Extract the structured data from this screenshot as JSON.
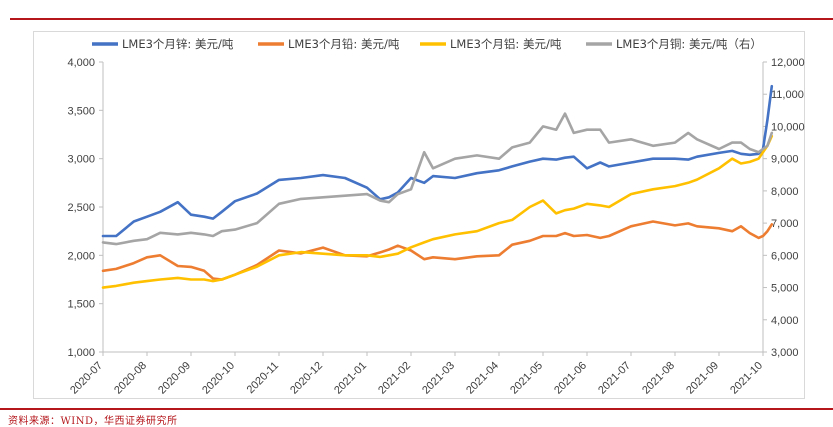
{
  "chart_data": {
    "type": "line",
    "xlabels": [
      "2020-07",
      "2020-08",
      "2020-09",
      "2020-10",
      "2020-11",
      "2020-12",
      "2021-01",
      "2021-02",
      "2021-03",
      "2021-04",
      "2021-05",
      "2021-06",
      "2021-07",
      "2021-08",
      "2021-09",
      "2021-10"
    ],
    "y_left": {
      "min": 1000,
      "max": 4000,
      "ticks": [
        "1,000",
        "1,500",
        "2,000",
        "2,500",
        "3,000",
        "3,500",
        "4,000"
      ]
    },
    "y_right": {
      "min": 3000,
      "max": 12000,
      "ticks": [
        "3,000",
        "4,000",
        "5,000",
        "6,000",
        "7,000",
        "8,000",
        "9,000",
        "10,000",
        "11,000",
        "12,000"
      ]
    },
    "legend_position": "top",
    "grid": false,
    "series": [
      {
        "name": "LME3个月锌: 美元/吨",
        "color": "#4472c4",
        "axis": "left",
        "x": [
          0,
          0.3,
          0.7,
          1,
          1.3,
          1.7,
          2,
          2.3,
          2.5,
          2.7,
          3,
          3.5,
          4,
          4.5,
          5,
          5.5,
          6,
          6.3,
          6.5,
          6.7,
          7,
          7.3,
          7.5,
          8,
          8.5,
          9,
          9.3,
          9.7,
          10,
          10.3,
          10.5,
          10.7,
          11,
          11.3,
          11.5,
          12,
          12.5,
          13,
          13.3,
          13.5,
          14,
          14.3,
          14.5,
          14.7,
          14.9,
          15,
          15.1,
          15.2
        ],
        "y": [
          2200,
          2200,
          2350,
          2400,
          2450,
          2550,
          2420,
          2400,
          2380,
          2450,
          2560,
          2640,
          2780,
          2800,
          2830,
          2800,
          2700,
          2580,
          2600,
          2650,
          2800,
          2750,
          2820,
          2800,
          2850,
          2880,
          2920,
          2970,
          3000,
          2990,
          3010,
          3020,
          2900,
          2960,
          2920,
          2960,
          3000,
          3000,
          2990,
          3020,
          3060,
          3080,
          3050,
          3040,
          3050,
          3100,
          3400,
          3750
        ]
      },
      {
        "name": "LME3个月铅: 美元/吨",
        "color": "#ed7d31",
        "axis": "left",
        "x": [
          0,
          0.3,
          0.7,
          1,
          1.3,
          1.7,
          2,
          2.3,
          2.5,
          2.7,
          3,
          3.5,
          4,
          4.5,
          5,
          5.5,
          6,
          6.3,
          6.5,
          6.7,
          7,
          7.3,
          7.5,
          8,
          8.5,
          9,
          9.3,
          9.7,
          10,
          10.3,
          10.5,
          10.7,
          11,
          11.3,
          11.5,
          12,
          12.5,
          13,
          13.3,
          13.5,
          14,
          14.3,
          14.5,
          14.7,
          14.9,
          15,
          15.1,
          15.2
        ],
        "y": [
          1840,
          1860,
          1920,
          1980,
          2000,
          1890,
          1880,
          1840,
          1760,
          1750,
          1800,
          1900,
          2050,
          2020,
          2080,
          2000,
          1990,
          2030,
          2060,
          2100,
          2050,
          1960,
          1980,
          1960,
          1990,
          2000,
          2110,
          2150,
          2200,
          2200,
          2230,
          2200,
          2210,
          2180,
          2200,
          2300,
          2350,
          2310,
          2330,
          2300,
          2280,
          2250,
          2300,
          2230,
          2180,
          2200,
          2250,
          2320
        ]
      },
      {
        "name": "LME3个月铝: 美元/吨",
        "color": "#ffc000",
        "axis": "right",
        "x": [
          0,
          0.3,
          0.7,
          1,
          1.3,
          1.7,
          2,
          2.3,
          2.5,
          2.7,
          3,
          3.5,
          4,
          4.5,
          5,
          5.5,
          6,
          6.3,
          6.5,
          6.7,
          7,
          7.3,
          7.5,
          8,
          8.5,
          9,
          9.3,
          9.7,
          10,
          10.3,
          10.5,
          10.7,
          11,
          11.3,
          11.5,
          12,
          12.5,
          13,
          13.3,
          13.5,
          14,
          14.3,
          14.5,
          14.7,
          14.9,
          15,
          15.1,
          15.2
        ],
        "y": [
          5000,
          5050,
          5150,
          5200,
          5250,
          5300,
          5250,
          5250,
          5200,
          5250,
          5400,
          5650,
          6000,
          6100,
          6050,
          6000,
          6000,
          5950,
          6000,
          6050,
          6250,
          6400,
          6500,
          6650,
          6750,
          7000,
          7100,
          7500,
          7700,
          7300,
          7400,
          7450,
          7600,
          7550,
          7500,
          7900,
          8050,
          8150,
          8250,
          8350,
          8700,
          9000,
          8850,
          8900,
          9000,
          9200,
          9400,
          9700
        ]
      },
      {
        "name": "LME3个月铜: 美元/吨（右）",
        "color": "#a5a5a5",
        "axis": "right",
        "x": [
          0,
          0.3,
          0.7,
          1,
          1.3,
          1.7,
          2,
          2.3,
          2.5,
          2.7,
          3,
          3.5,
          4,
          4.5,
          5,
          5.5,
          6,
          6.3,
          6.5,
          6.7,
          7,
          7.3,
          7.5,
          8,
          8.5,
          9,
          9.3,
          9.7,
          10,
          10.3,
          10.5,
          10.7,
          11,
          11.3,
          11.5,
          12,
          12.5,
          13,
          13.3,
          13.5,
          14,
          14.3,
          14.5,
          14.7,
          14.9,
          15,
          15.1,
          15.2
        ],
        "y": [
          6400,
          6350,
          6450,
          6500,
          6700,
          6650,
          6700,
          6650,
          6600,
          6750,
          6800,
          7000,
          7600,
          7750,
          7800,
          7850,
          7900,
          7700,
          7650,
          7900,
          8050,
          9200,
          8700,
          9000,
          9100,
          9000,
          9350,
          9500,
          10000,
          9900,
          10400,
          9800,
          9900,
          9900,
          9500,
          9600,
          9400,
          9500,
          9800,
          9600,
          9300,
          9500,
          9500,
          9300,
          9200,
          9300,
          9400,
          9800
        ]
      }
    ]
  },
  "source_note": "资料来源：WIND，华西证券研究所"
}
